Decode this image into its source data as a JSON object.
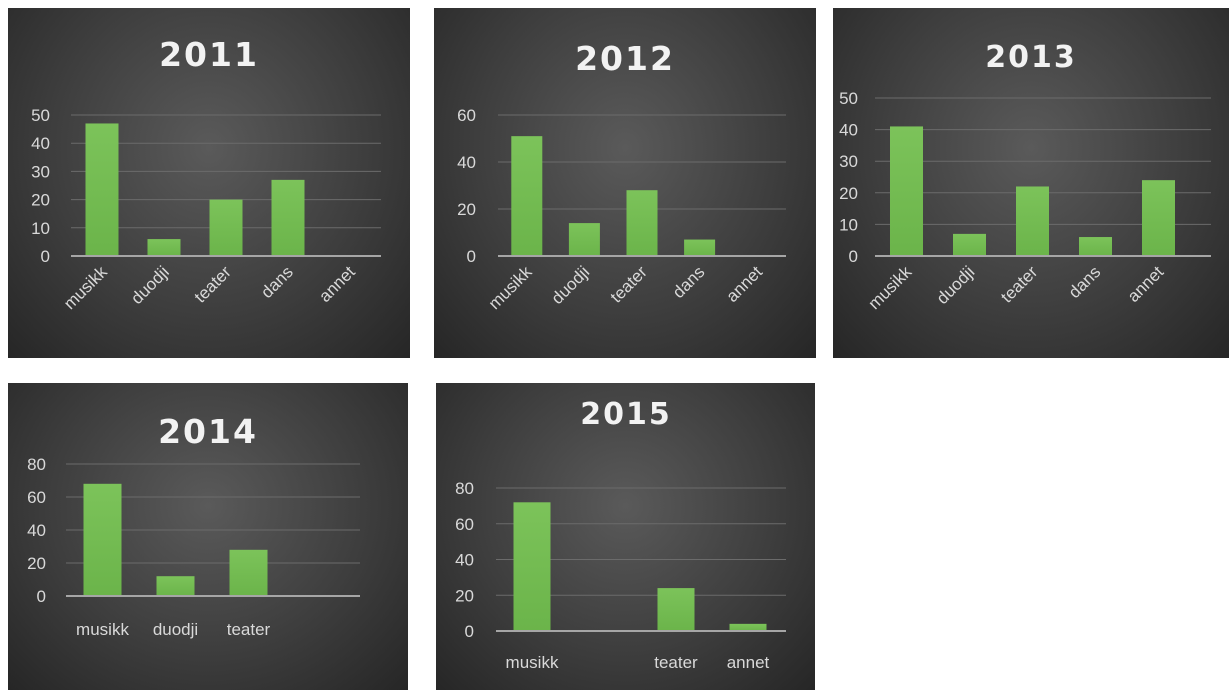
{
  "chart_data": [
    {
      "type": "bar",
      "title": "2011",
      "categories": [
        "musikk",
        "duodji",
        "teater",
        "dans",
        "annet"
      ],
      "values": [
        47,
        6,
        20,
        27,
        0
      ],
      "yticks": [
        0,
        10,
        20,
        30,
        40,
        50
      ],
      "ylim": [
        0,
        50
      ],
      "xlabel": "",
      "ylabel": "",
      "grid": true,
      "bar_color": "#6bb44a"
    },
    {
      "type": "bar",
      "title": "2012",
      "categories": [
        "musikk",
        "duodji",
        "teater",
        "dans",
        "annet"
      ],
      "values": [
        51,
        14,
        28,
        7,
        0
      ],
      "yticks": [
        0,
        20,
        40,
        60
      ],
      "ylim": [
        0,
        60
      ],
      "xlabel": "",
      "ylabel": "",
      "grid": true,
      "bar_color": "#6bb44a"
    },
    {
      "type": "bar",
      "title": "2013",
      "categories": [
        "musikk",
        "duodji",
        "teater",
        "dans",
        "annet"
      ],
      "values": [
        41,
        7,
        22,
        6,
        24
      ],
      "yticks": [
        0,
        10,
        20,
        30,
        40,
        50
      ],
      "ylim": [
        0,
        50
      ],
      "xlabel": "",
      "ylabel": "",
      "grid": true,
      "bar_color": "#6bb44a"
    },
    {
      "type": "bar",
      "title": "2014",
      "categories": [
        "musikk",
        "duodji",
        "teater",
        ""
      ],
      "values": [
        68,
        12,
        28,
        0
      ],
      "yticks": [
        0,
        20,
        40,
        60,
        80
      ],
      "ylim": [
        0,
        80
      ],
      "xlabel": "",
      "ylabel": "",
      "grid": true,
      "bar_color": "#6bb44a"
    },
    {
      "type": "bar",
      "title": "2015",
      "categories": [
        "musikk",
        "",
        "teater",
        "annet"
      ],
      "values": [
        72,
        0,
        24,
        4
      ],
      "yticks": [
        0,
        20,
        40,
        60,
        80
      ],
      "ylim": [
        0,
        80
      ],
      "xlabel": "",
      "ylabel": "",
      "grid": true,
      "bar_color": "#6bb44a"
    }
  ]
}
